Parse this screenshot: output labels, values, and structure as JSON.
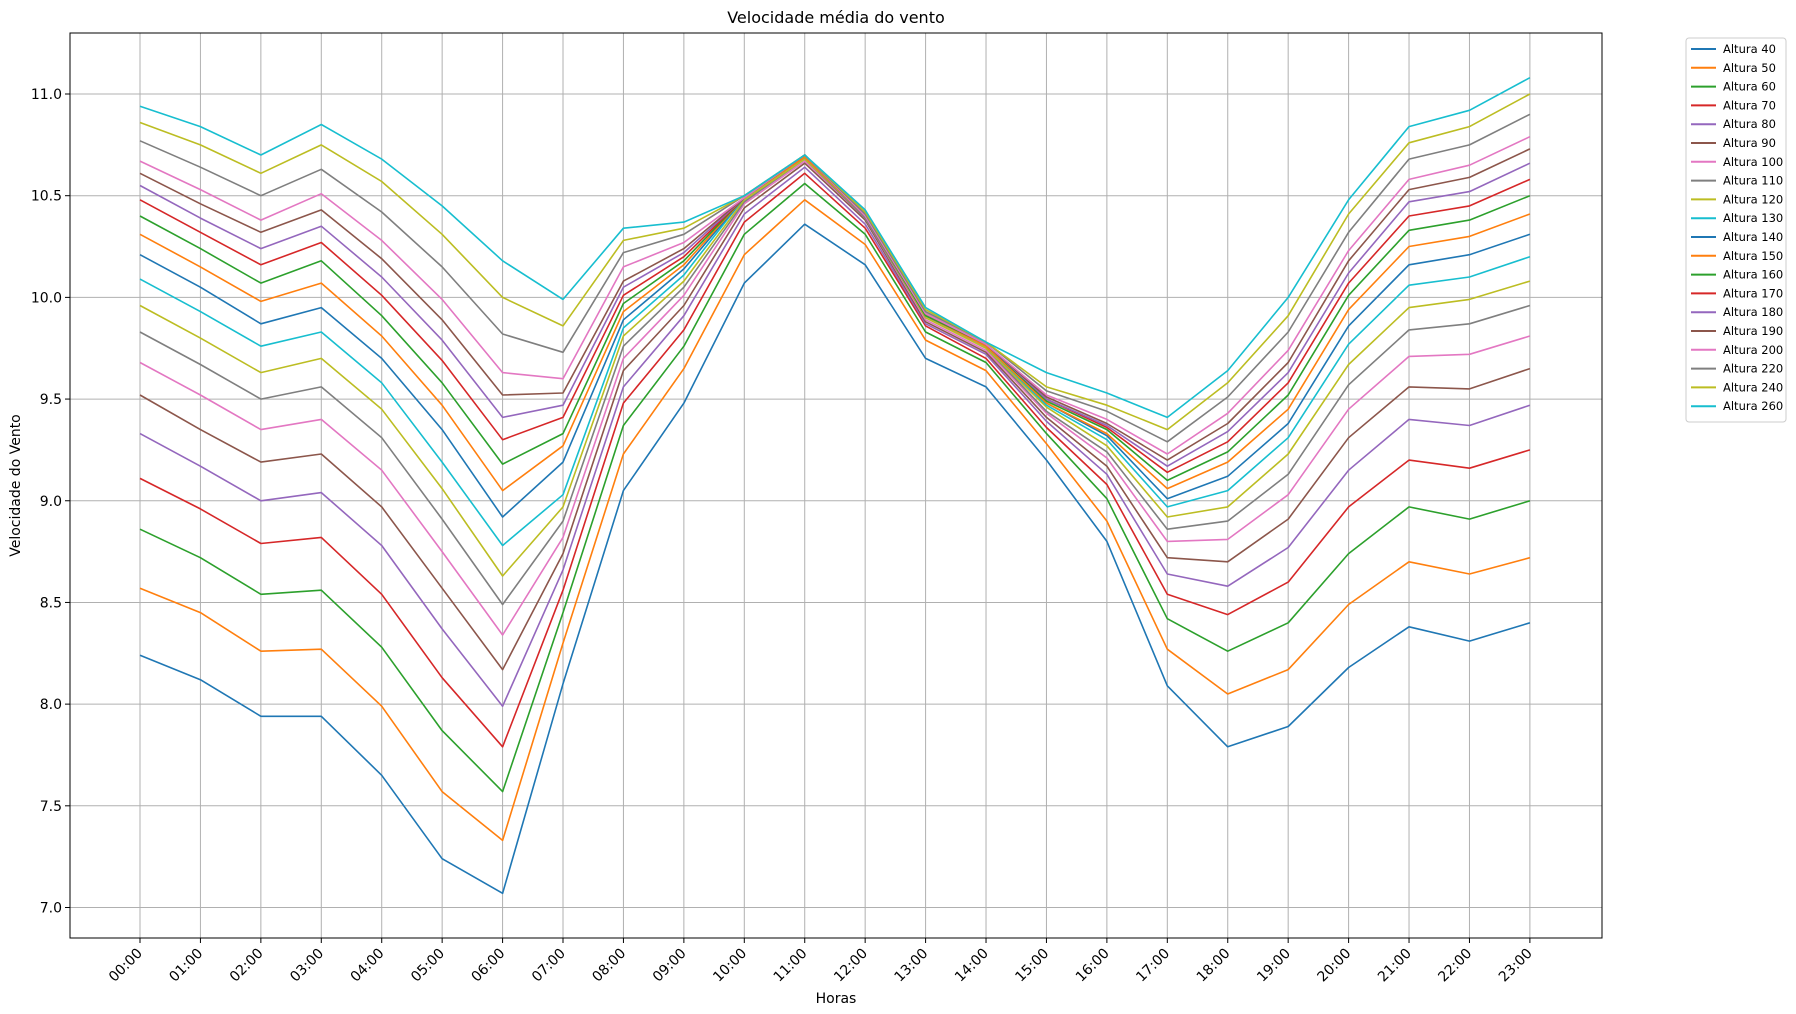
{
  "chart_data": {
    "type": "line",
    "title": "Velocidade média do vento",
    "xlabel": "Horas",
    "ylabel": "Velocidade do Vento",
    "categories": [
      "00:00",
      "01:00",
      "02:00",
      "03:00",
      "04:00",
      "05:00",
      "06:00",
      "07:00",
      "08:00",
      "09:00",
      "10:00",
      "11:00",
      "12:00",
      "13:00",
      "14:00",
      "15:00",
      "16:00",
      "17:00",
      "18:00",
      "19:00",
      "20:00",
      "21:00",
      "22:00",
      "23:00"
    ],
    "ylim": [
      6.85,
      11.3
    ],
    "yticks": [
      "7.0",
      "7.5",
      "8.0",
      "8.5",
      "9.0",
      "9.5",
      "10.0",
      "10.5",
      "11.0"
    ],
    "grid": true,
    "legend_position": "outside-right",
    "series": [
      {
        "name": "Altura 40",
        "color": "#1f77b4",
        "values": [
          8.24,
          8.12,
          7.94,
          7.94,
          7.65,
          7.24,
          7.07,
          8.1,
          9.05,
          9.48,
          10.07,
          10.36,
          10.16,
          9.7,
          9.56,
          9.2,
          8.8,
          8.09,
          7.79,
          7.89,
          8.18,
          8.38,
          8.31,
          8.4
        ]
      },
      {
        "name": "Altura 50",
        "color": "#ff7f0e",
        "values": [
          8.57,
          8.45,
          8.26,
          8.27,
          7.99,
          7.57,
          7.33,
          8.3,
          9.23,
          9.65,
          10.21,
          10.48,
          10.26,
          9.79,
          9.64,
          9.28,
          8.9,
          8.27,
          8.05,
          8.17,
          8.49,
          8.7,
          8.64,
          8.72
        ]
      },
      {
        "name": "Altura 60",
        "color": "#2ca02c",
        "values": [
          8.86,
          8.72,
          8.54,
          8.56,
          8.28,
          7.87,
          7.57,
          8.45,
          9.37,
          9.76,
          10.31,
          10.56,
          10.31,
          9.83,
          9.68,
          9.33,
          9.01,
          8.42,
          8.26,
          8.4,
          8.74,
          8.97,
          8.91,
          9.0
        ]
      },
      {
        "name": "Altura 70",
        "color": "#d62728",
        "values": [
          9.11,
          8.96,
          8.79,
          8.82,
          8.54,
          8.13,
          7.79,
          8.56,
          9.48,
          9.84,
          10.37,
          10.61,
          10.34,
          9.86,
          9.7,
          9.36,
          9.08,
          8.54,
          8.44,
          8.6,
          8.97,
          9.2,
          9.16,
          9.25
        ]
      },
      {
        "name": "Altura 80",
        "color": "#9467bd",
        "values": [
          9.33,
          9.17,
          9.0,
          9.04,
          8.78,
          8.37,
          7.99,
          8.66,
          9.56,
          9.91,
          10.41,
          10.64,
          10.36,
          9.87,
          9.72,
          9.39,
          9.13,
          8.64,
          8.58,
          8.77,
          9.15,
          9.4,
          9.37,
          9.47
        ]
      },
      {
        "name": "Altura 90",
        "color": "#8c564b",
        "values": [
          9.52,
          9.35,
          9.19,
          9.23,
          8.97,
          8.57,
          8.17,
          8.74,
          9.64,
          9.96,
          10.44,
          10.66,
          10.38,
          9.88,
          9.73,
          9.41,
          9.17,
          8.72,
          8.7,
          8.91,
          9.31,
          9.56,
          9.55,
          9.65
        ]
      },
      {
        "name": "Altura 100",
        "color": "#e377c2",
        "values": [
          9.68,
          9.52,
          9.35,
          9.4,
          9.15,
          8.75,
          8.34,
          8.82,
          9.7,
          10.01,
          10.46,
          10.67,
          10.39,
          9.89,
          9.74,
          9.43,
          9.21,
          8.8,
          8.81,
          9.03,
          9.45,
          9.71,
          9.72,
          9.81
        ]
      },
      {
        "name": "Altura 110",
        "color": "#7f7f7f",
        "values": [
          9.83,
          9.67,
          9.5,
          9.56,
          9.31,
          8.91,
          8.49,
          8.9,
          9.76,
          10.05,
          10.47,
          10.68,
          10.39,
          9.9,
          9.75,
          9.44,
          9.24,
          8.86,
          8.9,
          9.13,
          9.57,
          9.84,
          9.87,
          9.96
        ]
      },
      {
        "name": "Altura 120",
        "color": "#bcbd22",
        "values": [
          9.96,
          9.8,
          9.63,
          9.7,
          9.45,
          9.06,
          8.63,
          8.97,
          9.81,
          10.08,
          10.48,
          10.68,
          10.4,
          9.9,
          9.75,
          9.46,
          9.27,
          8.92,
          8.97,
          9.23,
          9.67,
          9.95,
          9.99,
          10.08
        ]
      },
      {
        "name": "Altura 130",
        "color": "#17becf",
        "values": [
          10.09,
          9.93,
          9.76,
          9.83,
          9.58,
          9.19,
          8.78,
          9.03,
          9.85,
          10.11,
          10.49,
          10.69,
          10.4,
          9.91,
          9.76,
          9.47,
          9.3,
          8.97,
          9.05,
          9.31,
          9.77,
          10.06,
          10.1,
          10.2
        ]
      },
      {
        "name": "Altura 140",
        "color": "#1f77b4",
        "values": [
          10.21,
          10.05,
          9.87,
          9.95,
          9.7,
          9.35,
          8.92,
          9.19,
          9.89,
          10.14,
          10.49,
          10.69,
          10.4,
          9.91,
          9.76,
          9.48,
          9.32,
          9.01,
          9.12,
          9.38,
          9.86,
          10.16,
          10.21,
          10.31
        ]
      },
      {
        "name": "Altura 150",
        "color": "#ff7f0e",
        "values": [
          10.31,
          10.15,
          9.98,
          10.07,
          9.81,
          9.47,
          9.05,
          9.27,
          9.93,
          10.16,
          10.49,
          10.69,
          10.4,
          9.91,
          9.76,
          9.48,
          9.33,
          9.06,
          9.19,
          9.45,
          9.94,
          10.25,
          10.3,
          10.41
        ]
      },
      {
        "name": "Altura 160",
        "color": "#2ca02c",
        "values": [
          10.4,
          10.24,
          10.07,
          10.18,
          9.91,
          9.58,
          9.18,
          9.33,
          9.97,
          10.18,
          10.49,
          10.7,
          10.4,
          9.91,
          9.77,
          9.49,
          9.35,
          9.1,
          9.24,
          9.52,
          10.01,
          10.33,
          10.38,
          10.5
        ]
      },
      {
        "name": "Altura 170",
        "color": "#d62728",
        "values": [
          10.48,
          10.32,
          10.16,
          10.27,
          10.01,
          9.69,
          9.3,
          9.41,
          10.01,
          10.2,
          10.49,
          10.7,
          10.4,
          9.92,
          9.77,
          9.5,
          9.36,
          9.14,
          9.29,
          9.58,
          10.07,
          10.4,
          10.45,
          10.58
        ]
      },
      {
        "name": "Altura 180",
        "color": "#9467bd",
        "values": [
          10.55,
          10.39,
          10.24,
          10.35,
          10.1,
          9.79,
          9.41,
          9.47,
          10.05,
          10.22,
          10.49,
          10.7,
          10.4,
          9.92,
          9.77,
          9.5,
          9.37,
          9.17,
          9.34,
          9.63,
          10.12,
          10.47,
          10.52,
          10.66
        ]
      },
      {
        "name": "Altura 190",
        "color": "#8c564b",
        "values": [
          10.61,
          10.46,
          10.32,
          10.43,
          10.19,
          9.89,
          9.52,
          9.53,
          10.08,
          10.24,
          10.49,
          10.7,
          10.4,
          9.92,
          9.77,
          9.51,
          9.38,
          9.2,
          9.38,
          9.68,
          10.18,
          10.53,
          10.59,
          10.73
        ]
      },
      {
        "name": "Altura 200",
        "color": "#e377c2",
        "values": [
          10.67,
          10.53,
          10.38,
          10.51,
          10.28,
          9.99,
          9.63,
          9.6,
          10.15,
          10.27,
          10.49,
          10.7,
          10.4,
          9.92,
          9.77,
          9.52,
          9.4,
          9.23,
          9.43,
          9.74,
          10.23,
          10.58,
          10.65,
          10.79
        ]
      },
      {
        "name": "Altura 220",
        "color": "#7f7f7f",
        "values": [
          10.77,
          10.64,
          10.5,
          10.63,
          10.42,
          10.15,
          9.82,
          9.73,
          10.22,
          10.31,
          10.5,
          10.7,
          10.41,
          9.93,
          9.78,
          9.54,
          9.44,
          9.29,
          9.51,
          9.83,
          10.32,
          10.68,
          10.75,
          10.9
        ]
      },
      {
        "name": "Altura 240",
        "color": "#bcbd22",
        "values": [
          10.86,
          10.75,
          10.61,
          10.75,
          10.57,
          10.31,
          10.0,
          9.86,
          10.28,
          10.34,
          10.5,
          10.7,
          10.42,
          9.94,
          9.78,
          9.56,
          9.47,
          9.35,
          9.58,
          9.91,
          10.41,
          10.76,
          10.84,
          11.0
        ]
      },
      {
        "name": "Altura 260",
        "color": "#17becf",
        "values": [
          10.94,
          10.84,
          10.7,
          10.85,
          10.68,
          10.45,
          10.18,
          9.99,
          10.34,
          10.37,
          10.5,
          10.7,
          10.43,
          9.95,
          9.78,
          9.63,
          9.53,
          9.41,
          9.64,
          10.0,
          10.48,
          10.84,
          10.92,
          11.08
        ]
      }
    ]
  }
}
